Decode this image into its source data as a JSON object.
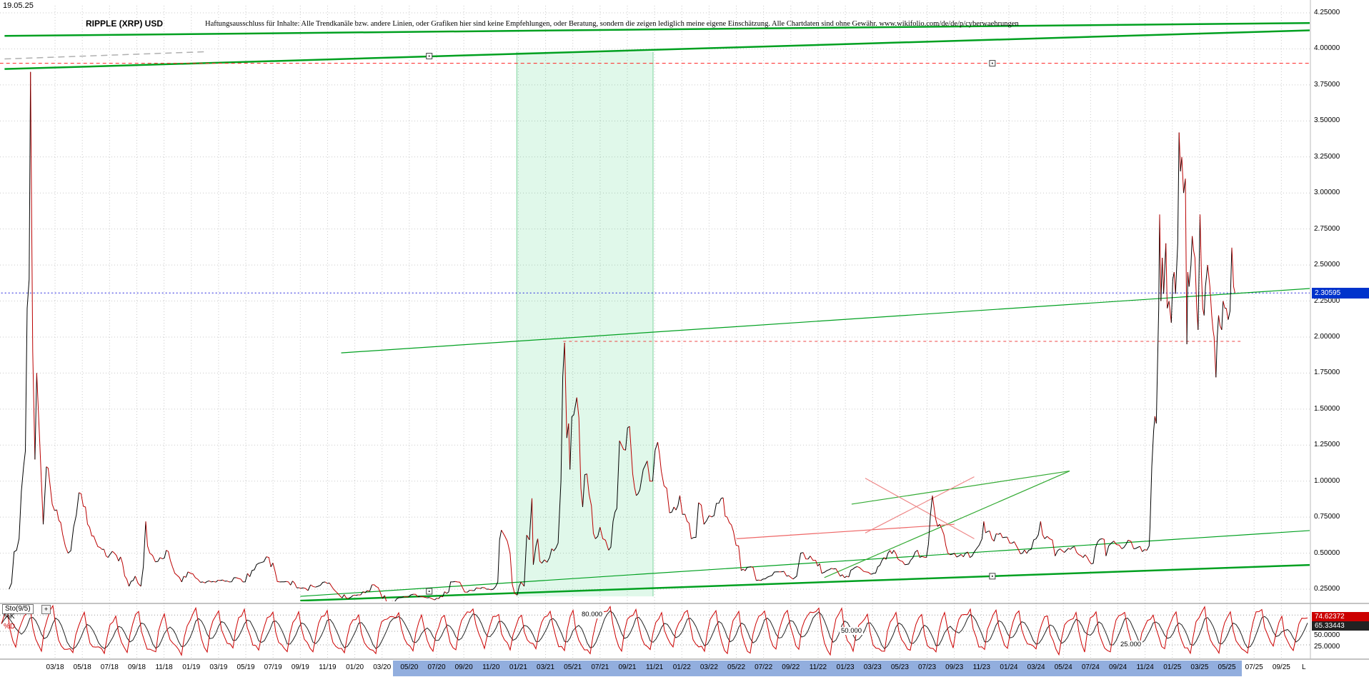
{
  "header": {
    "date_label": "19.05.25",
    "title": "RIPPLE (XRP) USD",
    "disclaimer": "Haftungsausschluss für Inhalte: Alle Trendkanäle bzw. andere Linien, oder Grafiken hier sind keine Empfehlungen, oder Beratung, sondern die zeigen lediglich meine eigene Einschätzung. Alle Chartdaten sind ohne Gewähr.  www.wikifolio.com/de/de/p/cyberwaehrungen"
  },
  "price_panel": {
    "axis_labels": [
      "4.25000",
      "4.00000",
      "3.75000",
      "3.50000",
      "3.25000",
      "3.00000",
      "2.75000",
      "2.50000",
      "2.25000",
      "2.00000",
      "1.75000",
      "1.50000",
      "1.25000",
      "1.00000",
      "0.75000",
      "0.50000",
      "0.25000"
    ],
    "current_price_badge": "2.30595"
  },
  "indicator_panel": {
    "name": "Sto(9/5)",
    "settings_icon": "+",
    "k_label": "%K",
    "d_label": "%D",
    "k_value": "74.62372",
    "d_value": "65.33443",
    "axis_values": [
      "50.0000",
      "25.0000"
    ],
    "level_labels": [
      "80.000",
      "50.000",
      "25.000"
    ]
  },
  "x_axis": {
    "labels": [
      "03/18",
      "05/18",
      "07/18",
      "09/18",
      "11/18",
      "01/19",
      "03/19",
      "05/19",
      "07/19",
      "09/19",
      "11/19",
      "01/20",
      "03/20",
      "05/20",
      "07/20",
      "09/20",
      "11/20",
      "01/21",
      "03/21",
      "05/21",
      "07/21",
      "09/21",
      "11/21",
      "01/22",
      "03/22",
      "05/22",
      "07/22",
      "09/22",
      "11/22",
      "01/23",
      "03/23",
      "05/23",
      "07/23",
      "09/23",
      "11/23",
      "01/24",
      "03/24",
      "05/24",
      "07/24",
      "09/24",
      "11/24",
      "01/25",
      "03/25",
      "05/25",
      "07/25",
      "09/25"
    ],
    "end_marker": "L"
  },
  "colors": {
    "trend_green": "#00A020",
    "resistance_red": "#ff2020",
    "current_price_blue": "#2222dd",
    "price_badge_blue": "#0033cc",
    "k_badge_red": "#cc0000",
    "d_badge_dark": "#222222",
    "highlight_band": "#92aede",
    "shade_green": "rgba(0,200,80,0.12)",
    "price_up_black": "#000000",
    "price_down_red": "#bb0000"
  },
  "chart_data": {
    "type": "line",
    "title": "RIPPLE (XRP) USD",
    "y_axis_range": [
      0.25,
      4.25
    ],
    "x_axis_range": [
      "2017-11",
      "2025-11"
    ],
    "grid": true,
    "current_price": 2.30595,
    "price_series": [
      [
        "2017-11-20",
        0.25
      ],
      [
        "2017-12-12",
        0.6
      ],
      [
        "2017-12-22",
        1.1
      ],
      [
        "2017-12-30",
        2.2
      ],
      [
        "2018-01-04",
        2.4
      ],
      [
        "2018-01-07",
        3.84
      ],
      [
        "2018-01-10",
        2.7
      ],
      [
        "2018-01-12",
        1.9
      ],
      [
        "2018-01-17",
        1.15
      ],
      [
        "2018-01-21",
        1.75
      ],
      [
        "2018-01-28",
        1.25
      ],
      [
        "2018-02-05",
        0.7
      ],
      [
        "2018-02-12",
        1.1
      ],
      [
        "2018-02-20",
        0.98
      ],
      [
        "2018-03-05",
        0.8
      ],
      [
        "2018-03-18",
        0.63
      ],
      [
        "2018-03-30",
        0.5
      ],
      [
        "2018-04-12",
        0.68
      ],
      [
        "2018-04-24",
        0.92
      ],
      [
        "2018-05-08",
        0.82
      ],
      [
        "2018-05-22",
        0.62
      ],
      [
        "2018-06-10",
        0.54
      ],
      [
        "2018-06-28",
        0.47
      ],
      [
        "2018-07-12",
        0.5
      ],
      [
        "2018-07-30",
        0.43
      ],
      [
        "2018-08-14",
        0.27
      ],
      [
        "2018-08-28",
        0.34
      ],
      [
        "2018-09-10",
        0.27
      ],
      [
        "2018-09-21",
        0.72
      ],
      [
        "2018-09-25",
        0.55
      ],
      [
        "2018-09-30",
        0.5
      ],
      [
        "2018-10-12",
        0.44
      ],
      [
        "2018-10-28",
        0.46
      ],
      [
        "2018-11-06",
        0.52
      ],
      [
        "2018-11-15",
        0.45
      ],
      [
        "2018-11-25",
        0.36
      ],
      [
        "2018-12-10",
        0.3
      ],
      [
        "2018-12-24",
        0.37
      ],
      [
        "2019-01-10",
        0.33
      ],
      [
        "2019-01-27",
        0.3
      ],
      [
        "2019-02-15",
        0.3
      ],
      [
        "2019-03-05",
        0.31
      ],
      [
        "2019-03-25",
        0.3
      ],
      [
        "2019-04-10",
        0.33
      ],
      [
        "2019-04-25",
        0.3
      ],
      [
        "2019-05-15",
        0.38
      ],
      [
        "2019-05-30",
        0.43
      ],
      [
        "2019-06-22",
        0.47
      ],
      [
        "2019-07-05",
        0.38
      ],
      [
        "2019-07-16",
        0.3
      ],
      [
        "2019-08-05",
        0.3
      ],
      [
        "2019-08-28",
        0.26
      ],
      [
        "2019-09-18",
        0.24
      ],
      [
        "2019-09-24",
        0.28
      ],
      [
        "2019-10-10",
        0.27
      ],
      [
        "2019-10-26",
        0.3
      ],
      [
        "2019-11-10",
        0.27
      ],
      [
        "2019-11-24",
        0.22
      ],
      [
        "2019-12-17",
        0.185
      ],
      [
        "2020-01-14",
        0.21
      ],
      [
        "2020-01-29",
        0.24
      ],
      [
        "2020-02-14",
        0.28
      ],
      [
        "2020-02-27",
        0.23
      ],
      [
        "2020-03-12",
        0.15
      ],
      [
        "2020-03-24",
        0.165
      ],
      [
        "2020-04-08",
        0.19
      ],
      [
        "2020-05-10",
        0.215
      ],
      [
        "2020-05-25",
        0.2
      ],
      [
        "2020-06-10",
        0.19
      ],
      [
        "2020-06-27",
        0.175
      ],
      [
        "2020-07-10",
        0.2
      ],
      [
        "2020-07-28",
        0.23
      ],
      [
        "2020-08-02",
        0.3
      ],
      [
        "2020-08-17",
        0.3
      ],
      [
        "2020-09-03",
        0.23
      ],
      [
        "2020-09-20",
        0.24
      ],
      [
        "2020-10-08",
        0.255
      ],
      [
        "2020-10-21",
        0.25
      ],
      [
        "2020-11-06",
        0.25
      ],
      [
        "2020-11-16",
        0.3
      ],
      [
        "2020-11-24",
        0.66
      ],
      [
        "2020-12-01",
        0.62
      ],
      [
        "2020-12-13",
        0.5
      ],
      [
        "2020-12-23",
        0.22
      ],
      [
        "2020-12-29",
        0.21
      ],
      [
        "2021-01-07",
        0.3
      ],
      [
        "2021-01-14",
        0.27
      ],
      [
        "2021-02-01",
        0.88
      ],
      [
        "2021-02-04",
        0.42
      ],
      [
        "2021-02-10",
        0.55
      ],
      [
        "2021-02-14",
        0.6
      ],
      [
        "2021-02-23",
        0.43
      ],
      [
        "2021-03-10",
        0.47
      ],
      [
        "2021-03-29",
        0.57
      ],
      [
        "2021-04-05",
        1.0
      ],
      [
        "2021-04-13",
        1.96
      ],
      [
        "2021-04-18",
        1.3
      ],
      [
        "2021-04-22",
        1.4
      ],
      [
        "2021-04-25",
        1.08
      ],
      [
        "2021-05-03",
        1.46
      ],
      [
        "2021-05-10",
        1.58
      ],
      [
        "2021-05-19",
        0.95
      ],
      [
        "2021-05-23",
        0.82
      ],
      [
        "2021-06-02",
        1.05
      ],
      [
        "2021-06-12",
        0.83
      ],
      [
        "2021-06-21",
        0.6
      ],
      [
        "2021-07-01",
        0.68
      ],
      [
        "2021-07-13",
        0.59
      ],
      [
        "2021-07-20",
        0.52
      ],
      [
        "2021-07-30",
        0.72
      ],
      [
        "2021-08-08",
        0.81
      ],
      [
        "2021-08-14",
        1.28
      ],
      [
        "2021-08-23",
        1.22
      ],
      [
        "2021-09-06",
        1.38
      ],
      [
        "2021-09-13",
        1.05
      ],
      [
        "2021-09-21",
        0.9
      ],
      [
        "2021-09-29",
        0.94
      ],
      [
        "2021-10-06",
        1.08
      ],
      [
        "2021-10-15",
        1.14
      ],
      [
        "2021-10-27",
        1.0
      ],
      [
        "2021-11-08",
        1.27
      ],
      [
        "2021-11-16",
        1.07
      ],
      [
        "2021-11-28",
        0.95
      ],
      [
        "2021-12-04",
        0.78
      ],
      [
        "2021-12-14",
        0.82
      ],
      [
        "2021-12-27",
        0.9
      ],
      [
        "2022-01-08",
        0.77
      ],
      [
        "2022-01-22",
        0.6
      ],
      [
        "2022-02-02",
        0.61
      ],
      [
        "2022-02-08",
        0.85
      ],
      [
        "2022-02-20",
        0.7
      ],
      [
        "2022-03-01",
        0.76
      ],
      [
        "2022-03-12",
        0.76
      ],
      [
        "2022-03-28",
        0.88
      ],
      [
        "2022-04-11",
        0.75
      ],
      [
        "2022-04-25",
        0.65
      ],
      [
        "2022-05-06",
        0.55
      ],
      [
        "2022-05-12",
        0.38
      ],
      [
        "2022-05-25",
        0.4
      ],
      [
        "2022-06-08",
        0.4
      ],
      [
        "2022-06-15",
        0.31
      ],
      [
        "2022-06-30",
        0.32
      ],
      [
        "2022-07-15",
        0.34
      ],
      [
        "2022-07-30",
        0.37
      ],
      [
        "2022-08-10",
        0.37
      ],
      [
        "2022-08-22",
        0.34
      ],
      [
        "2022-09-06",
        0.32
      ],
      [
        "2022-09-14",
        0.34
      ],
      [
        "2022-09-23",
        0.5
      ],
      [
        "2022-10-04",
        0.46
      ],
      [
        "2022-10-14",
        0.48
      ],
      [
        "2022-10-26",
        0.45
      ],
      [
        "2022-11-09",
        0.36
      ],
      [
        "2022-11-21",
        0.38
      ],
      [
        "2022-12-05",
        0.39
      ],
      [
        "2022-12-20",
        0.34
      ],
      [
        "2023-01-04",
        0.34
      ],
      [
        "2023-01-18",
        0.39
      ],
      [
        "2023-02-02",
        0.4
      ],
      [
        "2023-02-16",
        0.37
      ],
      [
        "2023-03-03",
        0.36
      ],
      [
        "2023-03-22",
        0.45
      ],
      [
        "2023-04-05",
        0.5
      ],
      [
        "2023-04-18",
        0.52
      ],
      [
        "2023-04-27",
        0.46
      ],
      [
        "2023-05-12",
        0.42
      ],
      [
        "2023-05-25",
        0.45
      ],
      [
        "2023-06-10",
        0.52
      ],
      [
        "2023-06-15",
        0.47
      ],
      [
        "2023-06-30",
        0.47
      ],
      [
        "2023-07-13",
        0.9
      ],
      [
        "2023-07-20",
        0.74
      ],
      [
        "2023-07-29",
        0.7
      ],
      [
        "2023-08-08",
        0.63
      ],
      [
        "2023-08-17",
        0.5
      ],
      [
        "2023-09-01",
        0.5
      ],
      [
        "2023-09-11",
        0.48
      ],
      [
        "2023-09-26",
        0.5
      ],
      [
        "2023-10-10",
        0.48
      ],
      [
        "2023-10-20",
        0.53
      ],
      [
        "2023-11-02",
        0.6
      ],
      [
        "2023-11-06",
        0.72
      ],
      [
        "2023-11-14",
        0.65
      ],
      [
        "2023-11-24",
        0.6
      ],
      [
        "2023-12-08",
        0.63
      ],
      [
        "2023-12-22",
        0.61
      ],
      [
        "2024-01-03",
        0.57
      ],
      [
        "2024-01-18",
        0.55
      ],
      [
        "2024-02-01",
        0.5
      ],
      [
        "2024-02-15",
        0.52
      ],
      [
        "2024-03-01",
        0.6
      ],
      [
        "2024-03-11",
        0.72
      ],
      [
        "2024-03-20",
        0.6
      ],
      [
        "2024-04-01",
        0.6
      ],
      [
        "2024-04-13",
        0.48
      ],
      [
        "2024-04-24",
        0.53
      ],
      [
        "2024-05-08",
        0.52
      ],
      [
        "2024-05-21",
        0.54
      ],
      [
        "2024-06-05",
        0.49
      ],
      [
        "2024-06-24",
        0.47
      ],
      [
        "2024-07-07",
        0.43
      ],
      [
        "2024-07-17",
        0.58
      ],
      [
        "2024-07-27",
        0.6
      ],
      [
        "2024-08-05",
        0.48
      ],
      [
        "2024-08-17",
        0.57
      ],
      [
        "2024-08-28",
        0.56
      ],
      [
        "2024-09-10",
        0.53
      ],
      [
        "2024-09-24",
        0.59
      ],
      [
        "2024-10-06",
        0.53
      ],
      [
        "2024-10-15",
        0.54
      ],
      [
        "2024-10-25",
        0.51
      ],
      [
        "2024-11-05",
        0.52
      ],
      [
        "2024-11-10",
        0.55
      ],
      [
        "2024-11-12",
        0.68
      ],
      [
        "2024-11-16",
        1.1
      ],
      [
        "2024-11-20",
        1.35
      ],
      [
        "2024-11-23",
        1.45
      ],
      [
        "2024-11-26",
        1.4
      ],
      [
        "2024-12-01",
        2.2
      ],
      [
        "2024-12-03",
        2.85
      ],
      [
        "2024-12-06",
        2.25
      ],
      [
        "2024-12-09",
        2.55
      ],
      [
        "2024-12-12",
        2.3
      ],
      [
        "2024-12-17",
        2.65
      ],
      [
        "2024-12-20",
        2.2
      ],
      [
        "2024-12-24",
        2.25
      ],
      [
        "2024-12-29",
        2.1
      ],
      [
        "2025-01-02",
        2.4
      ],
      [
        "2025-01-05",
        2.45
      ],
      [
        "2025-01-08",
        2.3
      ],
      [
        "2025-01-13",
        2.65
      ],
      [
        "2025-01-16",
        3.42
      ],
      [
        "2025-01-19",
        3.15
      ],
      [
        "2025-01-22",
        3.25
      ],
      [
        "2025-01-26",
        3.0
      ],
      [
        "2025-01-30",
        3.1
      ],
      [
        "2025-02-03",
        1.95
      ],
      [
        "2025-02-05",
        2.45
      ],
      [
        "2025-02-08",
        2.35
      ],
      [
        "2025-02-12",
        2.5
      ],
      [
        "2025-02-15",
        2.7
      ],
      [
        "2025-02-18",
        2.6
      ],
      [
        "2025-02-21",
        2.55
      ],
      [
        "2025-02-25",
        2.2
      ],
      [
        "2025-02-28",
        2.05
      ],
      [
        "2025-03-02",
        2.85
      ],
      [
        "2025-03-05",
        2.45
      ],
      [
        "2025-03-08",
        2.2
      ],
      [
        "2025-03-11",
        2.15
      ],
      [
        "2025-03-14",
        2.35
      ],
      [
        "2025-03-19",
        2.5
      ],
      [
        "2025-03-24",
        2.35
      ],
      [
        "2025-03-28",
        2.15
      ],
      [
        "2025-03-31",
        2.05
      ],
      [
        "2025-04-03",
        2.0
      ],
      [
        "2025-04-07",
        1.72
      ],
      [
        "2025-04-10",
        2.0
      ],
      [
        "2025-04-13",
        2.15
      ],
      [
        "2025-04-16",
        2.08
      ],
      [
        "2025-04-20",
        2.05
      ],
      [
        "2025-04-23",
        2.25
      ],
      [
        "2025-04-27",
        2.2
      ],
      [
        "2025-04-30",
        2.2
      ],
      [
        "2025-05-04",
        2.12
      ],
      [
        "2025-05-08",
        2.18
      ],
      [
        "2025-05-12",
        2.62
      ],
      [
        "2025-05-14",
        2.5
      ],
      [
        "2025-05-16",
        2.35
      ],
      [
        "2025-05-19",
        2.30595
      ]
    ],
    "overlays": [
      {
        "name": "upper-green-trendline",
        "x1": "2017-11-10",
        "p1": 3.86,
        "x2": "2025-11-20",
        "p2": 4.13,
        "color": "green",
        "width": 2.5
      },
      {
        "name": "top-green-trendline",
        "x1": "2017-11-10",
        "p1": 4.09,
        "x2": "2025-11-20",
        "p2": 4.18,
        "color": "green",
        "width": 2.5
      },
      {
        "name": "gray-dashed-segment",
        "x1": "2017-11-10",
        "p1": 3.93,
        "x2": "2019-02-01",
        "p2": 3.98,
        "color": "#b0b0b0",
        "width": 1.5,
        "dash": "9,6"
      },
      {
        "name": "red-resistance-line-390",
        "x1": "2017-10-01",
        "p1": 3.9,
        "x2": "2025-12-10",
        "p2": 3.9,
        "color": "red",
        "width": 1,
        "dash": "5,4"
      },
      {
        "name": "blue-current-price-line",
        "x1": "2017-10-01",
        "p1": 2.30595,
        "x2": "2025-12-10",
        "p2": 2.30595,
        "color": "blue",
        "width": 1,
        "dash": "2,3"
      },
      {
        "name": "mid-green-trendline",
        "x1": "2019-12-01",
        "p1": 1.89,
        "x2": "2025-11-20",
        "p2": 2.34,
        "color": "green",
        "width": 1.2
      },
      {
        "name": "red-resistance-line-197",
        "x1": "2021-04-10",
        "p1": 1.97,
        "x2": "2025-06-01",
        "p2": 1.97,
        "color": "#ee4444",
        "width": 1,
        "dash": "4,4"
      },
      {
        "name": "lower-green-support-line",
        "x1": "2019-09-01",
        "p1": 0.2,
        "x2": "2025-11-20",
        "p2": 0.66,
        "color": "green",
        "width": 1.2
      },
      {
        "name": "lower-green-channel-line",
        "x1": "2019-09-01",
        "p1": 0.17,
        "x2": "2025-11-20",
        "p2": 0.42,
        "color": "green",
        "width": 2.5
      },
      {
        "name": "green-segment-2023-rising",
        "x1": "2022-11-15",
        "p1": 0.33,
        "x2": "2024-05-15",
        "p2": 1.07,
        "color": "#33aa33",
        "width": 1.2
      },
      {
        "name": "green-segment-2023-upper",
        "x1": "2023-01-15",
        "p1": 0.84,
        "x2": "2024-05-15",
        "p2": 1.07,
        "color": "#33aa33",
        "width": 1.2
      },
      {
        "name": "red-segment-2022",
        "x1": "2022-05-01",
        "p1": 0.6,
        "x2": "2023-09-01",
        "p2": 0.7,
        "color": "#ee6666",
        "width": 1.2
      },
      {
        "name": "red-cross-up",
        "x1": "2023-02-15",
        "p1": 0.64,
        "x2": "2023-10-15",
        "p2": 1.03,
        "color": "#ee8888",
        "width": 1.2
      },
      {
        "name": "red-cross-down",
        "x1": "2023-02-15",
        "p1": 1.02,
        "x2": "2023-10-15",
        "p2": 0.6,
        "color": "#ee8888",
        "width": 1.2
      }
    ],
    "shaded_region": {
      "x1": "2020-12-28",
      "x2": "2021-10-28",
      "p_top": 3.98,
      "p_bottom": 0.2
    },
    "handles": [
      {
        "x": "2020-06-15",
        "p": 3.95
      },
      {
        "x": "2023-11-25",
        "p": 3.9
      },
      {
        "x": "2023-11-25",
        "p": 0.34
      },
      {
        "x": "2020-06-15",
        "p": 0.235
      }
    ],
    "indicator": {
      "type": "stochastic",
      "name": "Sto(9/5)",
      "k_period": 9,
      "d_period": 5,
      "range": [
        0,
        100
      ],
      "levels": [
        80,
        50,
        25
      ],
      "k_current": 74.62372,
      "d_current": 65.33443
    }
  }
}
